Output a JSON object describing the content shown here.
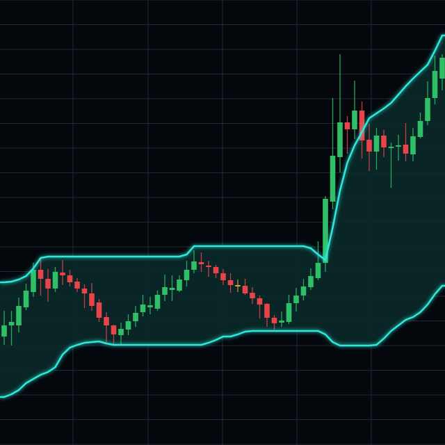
{
  "chart_data": {
    "type": "candlestick",
    "title": "",
    "xlabel": "",
    "ylabel": "",
    "axes_visible": false,
    "grid": true,
    "ylim": [
      0,
      640
    ],
    "colors": {
      "background": "#04080d",
      "grid": "#1c2a33",
      "up": "#2fbf66",
      "down": "#e8454b",
      "doji": "#d9a23a",
      "band_line": "#2ee8da",
      "band_fill": "#0b2a2b"
    },
    "candles": [
      [
        156,
        193,
        144,
        172
      ],
      [
        172,
        193,
        143,
        177
      ],
      [
        172,
        212,
        162,
        200
      ],
      [
        198,
        232,
        194,
        222
      ],
      [
        220,
        262,
        213,
        252
      ],
      [
        252,
        268,
        215,
        239
      ],
      [
        239,
        253,
        206,
        225
      ],
      [
        225,
        256,
        220,
        249
      ],
      [
        248,
        266,
        230,
        244
      ],
      [
        244,
        252,
        228,
        234
      ],
      [
        235,
        240,
        220,
        225
      ],
      [
        225,
        231,
        197,
        218
      ],
      [
        218,
        233,
        193,
        200
      ],
      [
        205,
        210,
        177,
        183
      ],
      [
        184,
        191,
        148,
        172
      ],
      [
        172,
        173,
        144,
        159
      ],
      [
        158,
        176,
        145,
        167
      ],
      [
        166,
        188,
        158,
        178
      ],
      [
        178,
        200,
        170,
        190
      ],
      [
        191,
        216,
        185,
        202
      ],
      [
        198,
        213,
        188,
        201
      ],
      [
        196,
        222,
        193,
        216
      ],
      [
        216,
        245,
        207,
        227
      ],
      [
        223,
        244,
        207,
        226
      ],
      [
        222,
        244,
        220,
        238
      ],
      [
        237,
        265,
        228,
        252
      ],
      [
        252,
        280,
        247,
        264
      ],
      [
        263,
        277,
        249,
        260
      ],
      [
        258,
        265,
        242,
        256
      ],
      [
        256,
        259,
        240,
        247
      ],
      [
        247,
        253,
        230,
        237
      ],
      [
        237,
        247,
        219,
        230
      ],
      [
        230,
        238,
        220,
        230
      ],
      [
        229,
        239,
        216,
        218
      ],
      [
        219,
        227,
        203,
        211
      ],
      [
        211,
        215,
        182,
        202
      ],
      [
        203,
        204,
        170,
        183
      ],
      [
        183,
        187,
        166,
        175
      ],
      [
        176,
        192,
        170,
        179
      ],
      [
        177,
        216,
        174,
        204
      ],
      [
        204,
        226,
        192,
        215
      ],
      [
        215,
        239,
        208,
        228
      ],
      [
        227,
        254,
        223,
        243
      ],
      [
        240,
        293,
        237,
        262
      ],
      [
        262,
        358,
        249,
        354
      ],
      [
        350,
        499,
        339,
        416
      ],
      [
        414,
        562,
        392,
        464
      ],
      [
        464,
        473,
        419,
        454
      ],
      [
        454,
        524,
        440,
        481
      ],
      [
        481,
        494,
        412,
        438
      ],
      [
        439,
        462,
        394,
        422
      ],
      [
        422,
        456,
        396,
        445
      ],
      [
        445,
        453,
        414,
        428
      ],
      [
        427,
        435,
        370,
        429
      ],
      [
        429,
        446,
        409,
        431
      ],
      [
        432,
        463,
        408,
        419
      ],
      [
        418,
        456,
        408,
        444
      ],
      [
        443,
        478,
        441,
        466
      ],
      [
        466,
        523,
        460,
        499
      ],
      [
        499,
        560,
        490,
        538
      ],
      [
        527,
        562,
        510,
        557
      ]
    ],
    "upper_band": [
      234,
      235,
      238,
      243,
      254,
      269,
      271,
      271,
      271,
      271,
      271,
      271,
      271,
      271,
      271,
      271,
      271,
      271,
      271,
      271,
      271,
      271,
      271,
      271,
      271,
      274,
      286,
      286,
      286,
      286,
      286,
      286,
      286,
      286,
      286,
      286,
      286,
      286,
      286,
      286,
      286,
      286,
      283,
      274,
      266,
      313,
      366,
      406,
      431,
      450,
      470,
      477,
      484,
      492,
      504,
      516,
      527,
      537,
      547,
      567,
      589
    ],
    "lower_band": [
      69,
      73,
      79,
      89,
      95,
      101,
      105,
      112,
      130,
      140,
      144,
      147,
      148,
      149,
      146,
      144,
      144,
      144,
      144,
      144,
      144,
      144,
      144,
      144,
      144,
      144,
      144,
      144,
      147,
      151,
      156,
      156,
      159,
      163,
      164,
      164,
      164,
      164,
      164,
      164,
      164,
      164,
      164,
      164,
      159,
      148,
      143,
      143,
      143,
      143,
      143,
      144,
      153,
      164,
      172,
      180,
      184,
      191,
      202,
      217,
      229
    ]
  }
}
